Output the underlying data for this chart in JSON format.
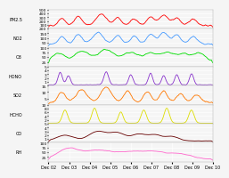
{
  "x_labels": [
    "Dec 02",
    "Dec 03",
    "Dec 04",
    "Dec 05",
    "Dec 06",
    "Dec 07",
    "Dec 08",
    "Dec 09",
    "Dec 10"
  ],
  "n_points": 500,
  "subplots": [
    {
      "color": "#ff0000",
      "ylabel": "PM2.5",
      "ylim": [
        0,
        500
      ],
      "yticks": [
        100,
        200,
        300,
        400,
        500
      ],
      "ytick_labels": [
        "100",
        "200",
        "300",
        "400",
        "500"
      ]
    },
    {
      "color": "#4499ff",
      "ylabel": "NO2",
      "ylim": [
        0,
        200
      ],
      "yticks": [
        50,
        100,
        150,
        200
      ],
      "ytick_labels": [
        "50",
        "100",
        "150",
        "200"
      ]
    },
    {
      "color": "#00dd00",
      "ylabel": "O3",
      "ylim": [
        0,
        100
      ],
      "yticks": [
        25,
        50,
        75,
        100
      ],
      "ytick_labels": [
        "25",
        "50",
        "75",
        "100"
      ]
    },
    {
      "color": "#8833cc",
      "ylabel": "HONO",
      "ylim": [
        0,
        5
      ],
      "yticks": [
        1,
        2,
        3,
        4,
        5
      ],
      "ytick_labels": [
        "1",
        "2",
        "3",
        "4",
        "5"
      ]
    },
    {
      "color": "#ff7700",
      "ylabel": "SO2",
      "ylim": [
        0,
        15
      ],
      "yticks": [
        5,
        10,
        15
      ],
      "ytick_labels": [
        "5",
        "10",
        "15"
      ]
    },
    {
      "color": "#dddd00",
      "ylabel": "HCHO",
      "ylim": [
        0,
        10
      ],
      "yticks": [
        2,
        4,
        6,
        8,
        10
      ],
      "ytick_labels": [
        "2",
        "4",
        "6",
        "8",
        "10"
      ]
    },
    {
      "color": "#660000",
      "ylabel": "CO",
      "ylim": [
        0,
        5
      ],
      "yticks": [
        1,
        2,
        3,
        4,
        5
      ],
      "ytick_labels": [
        "1",
        "2",
        "3",
        "4",
        "5"
      ]
    },
    {
      "color": "#ff66cc",
      "ylabel": "RH",
      "ylim": [
        0,
        100
      ],
      "yticks": [
        25,
        50,
        75,
        100
      ],
      "ytick_labels": [
        "25",
        "50",
        "75",
        "100"
      ]
    }
  ],
  "background_color": "#f5f5f5",
  "plot_bg_color": "#f5f5f5",
  "grid_color": "#ffffff",
  "tick_fontsize": 3.2,
  "label_fontsize": 3.5,
  "linewidth": 0.6
}
